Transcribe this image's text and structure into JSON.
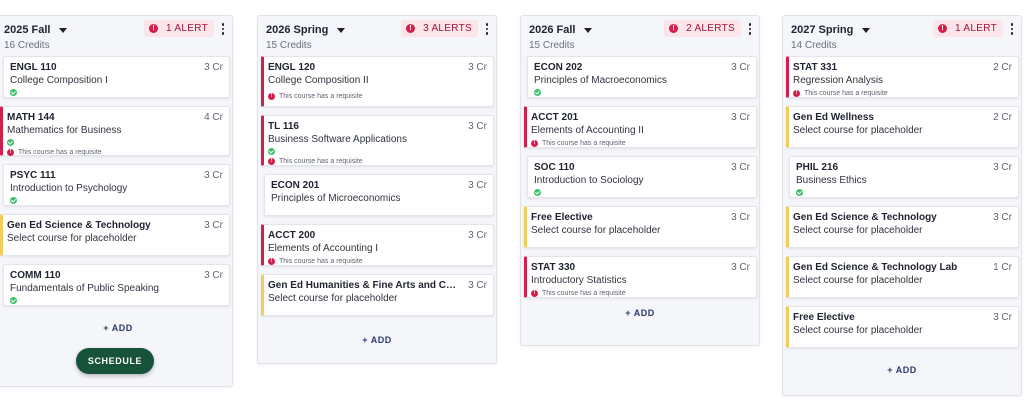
{
  "colors": {
    "alert": "#d31f4b",
    "requisite_bar": "#d31f4b",
    "placeholder_bar": "#f3cd5a",
    "check": "#3fbf6c",
    "schedule_button": "#17523a"
  },
  "add_label": "+ ADD",
  "schedule_label": "SCHEDULE",
  "terms": [
    {
      "name": "2025 Fall",
      "credits": "16 Credits",
      "alert": "1 ALERT",
      "courses": [
        {
          "code": "ENGL 110",
          "cr": "3 Cr",
          "title": "College Composition I",
          "check": true,
          "req": "",
          "bar": "none"
        },
        {
          "code": "MATH 144",
          "cr": "4 Cr",
          "title": "Mathematics for Business",
          "check": true,
          "req": "This course has a requisite",
          "bar": "red"
        },
        {
          "code": "PSYC 111",
          "cr": "3 Cr",
          "title": "Introduction to Psychology",
          "check": true,
          "req": "",
          "bar": "none"
        },
        {
          "code": "Gen Ed Science & Technology",
          "cr": "3 Cr",
          "title": "Select course for placeholder",
          "check": false,
          "req": "",
          "bar": "yellow"
        },
        {
          "code": "COMM 110",
          "cr": "3 Cr",
          "title": "Fundamentals of Public Speaking",
          "check": true,
          "req": "",
          "bar": "none"
        }
      ]
    },
    {
      "name": "2026 Spring",
      "credits": "15 Credits",
      "alert": "3 ALERTS",
      "courses": [
        {
          "code": "ENGL 120",
          "cr": "3 Cr",
          "title": "College Composition II",
          "check": false,
          "req": "This course has a requisite",
          "bar": "red"
        },
        {
          "code": "TL 116",
          "cr": "3 Cr",
          "title": "Business Software Applications",
          "check": true,
          "req": "This course has a requisite",
          "bar": "red"
        },
        {
          "code": "ECON 201",
          "cr": "3 Cr",
          "title": "Principles of Microeconomics",
          "check": false,
          "req": "",
          "bar": "none"
        },
        {
          "code": "ACCT 200",
          "cr": "3 Cr",
          "title": "Elements of Accounting I",
          "check": false,
          "req": "This course has a requisite",
          "bar": "red"
        },
        {
          "code": "Gen Ed Humanities & Fine Arts and Cultural",
          "cr": "3 Cr",
          "title": "Select course for placeholder",
          "check": false,
          "req": "",
          "bar": "yellow"
        }
      ]
    },
    {
      "name": "2026 Fall",
      "credits": "15 Credits",
      "alert": "2 ALERTS",
      "courses": [
        {
          "code": "ECON 202",
          "cr": "3 Cr",
          "title": "Principles of Macroeconomics",
          "check": true,
          "req": "",
          "bar": "none"
        },
        {
          "code": "ACCT 201",
          "cr": "3 Cr",
          "title": "Elements of Accounting II",
          "check": false,
          "req": "This course has a requisite",
          "bar": "red"
        },
        {
          "code": "SOC 110",
          "cr": "3 Cr",
          "title": "Introduction to Sociology",
          "check": true,
          "req": "",
          "bar": "none"
        },
        {
          "code": "Free Elective",
          "cr": "3 Cr",
          "title": "Select course for placeholder",
          "check": false,
          "req": "",
          "bar": "yellow"
        },
        {
          "code": "STAT 330",
          "cr": "3 Cr",
          "title": "Introductory Statistics",
          "check": false,
          "req": "This course has a requisite",
          "bar": "red"
        }
      ]
    },
    {
      "name": "2027 Spring",
      "credits": "14 Credits",
      "alert": "1 ALERT",
      "courses": [
        {
          "code": "STAT 331",
          "cr": "2 Cr",
          "title": "Regression Analysis",
          "check": false,
          "req": "This course has a requisite",
          "bar": "red"
        },
        {
          "code": "Gen Ed Wellness",
          "cr": "2 Cr",
          "title": "Select course for placeholder",
          "check": false,
          "req": "",
          "bar": "yellow"
        },
        {
          "code": "PHIL 216",
          "cr": "3 Cr",
          "title": "Business Ethics",
          "check": true,
          "req": "",
          "bar": "none"
        },
        {
          "code": "Gen Ed Science & Technology",
          "cr": "3 Cr",
          "title": "Select course for placeholder",
          "check": false,
          "req": "",
          "bar": "yellow"
        },
        {
          "code": "Gen Ed Science & Technology Lab",
          "cr": "1 Cr",
          "title": "Select course for placeholder",
          "check": false,
          "req": "",
          "bar": "yellow"
        },
        {
          "code": "Free Elective",
          "cr": "3 Cr",
          "title": "Select course for placeholder",
          "check": false,
          "req": "",
          "bar": "yellow"
        }
      ]
    }
  ]
}
